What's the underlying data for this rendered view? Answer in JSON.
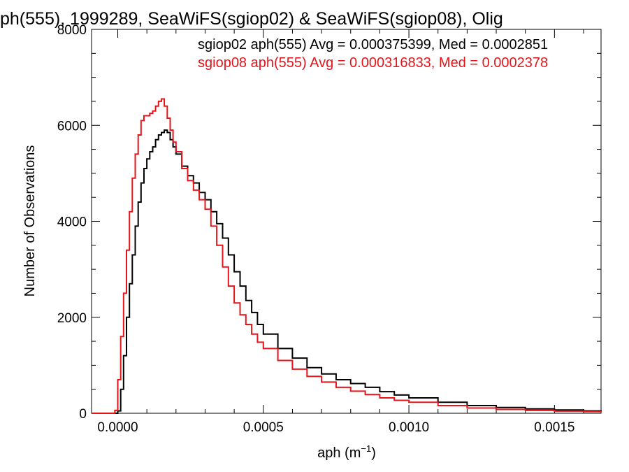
{
  "chart_data": {
    "type": "line",
    "title": "ph(555), 1999289, SeaWiFS(sgiop02) & SeaWiFS(sgiop08), Olig",
    "xlabel": "aph (m",
    "xlabel_sup": "−1",
    "xlabel_close": ")",
    "ylabel": "Number of Observations",
    "xlim": [
      -9e-05,
      0.00166
    ],
    "ylim": [
      0,
      8000
    ],
    "grid": false,
    "x_ticks": [
      0.0,
      0.0005,
      0.001,
      0.0015
    ],
    "x_tick_labels": [
      "0.0000",
      "0.0005",
      "0.0010",
      "0.0015"
    ],
    "y_ticks": [
      0,
      2000,
      4000,
      6000,
      8000
    ],
    "y_tick_labels": [
      "0",
      "2000",
      "4000",
      "6000",
      "8000"
    ],
    "legend_placement": "top-right",
    "series": [
      {
        "name": "sgiop02 aph(555) Avg = 0.000375399, Med = 0.0002851",
        "color": "#000000",
        "points": [
          [
            -9e-05,
            0
          ],
          [
            -1e-05,
            0
          ],
          [
            0.0,
            50
          ],
          [
            1e-05,
            500
          ],
          [
            2e-05,
            1200
          ],
          [
            3e-05,
            2000
          ],
          [
            4e-05,
            2700
          ],
          [
            5e-05,
            3300
          ],
          [
            6e-05,
            3900
          ],
          [
            7e-05,
            4400
          ],
          [
            8e-05,
            4800
          ],
          [
            9e-05,
            5100
          ],
          [
            0.0001,
            5300
          ],
          [
            0.00011,
            5450
          ],
          [
            0.00012,
            5550
          ],
          [
            0.00013,
            5700
          ],
          [
            0.00014,
            5800
          ],
          [
            0.00015,
            5850
          ],
          [
            0.00016,
            5900
          ],
          [
            0.00017,
            5850
          ],
          [
            0.00018,
            5700
          ],
          [
            0.00019,
            5550
          ],
          [
            0.0002,
            5400
          ],
          [
            0.00022,
            5150
          ],
          [
            0.00024,
            4950
          ],
          [
            0.00026,
            4800
          ],
          [
            0.00028,
            4600
          ],
          [
            0.0003,
            4450
          ],
          [
            0.00032,
            4200
          ],
          [
            0.00034,
            3950
          ],
          [
            0.00036,
            3650
          ],
          [
            0.00038,
            3300
          ],
          [
            0.0004,
            2950
          ],
          [
            0.00042,
            2650
          ],
          [
            0.00044,
            2350
          ],
          [
            0.00046,
            2100
          ],
          [
            0.00048,
            1850
          ],
          [
            0.0005,
            1650
          ],
          [
            0.00055,
            1350
          ],
          [
            0.0006,
            1150
          ],
          [
            0.00065,
            950
          ],
          [
            0.0007,
            820
          ],
          [
            0.00075,
            700
          ],
          [
            0.0008,
            620
          ],
          [
            0.00085,
            540
          ],
          [
            0.0009,
            450
          ],
          [
            0.00095,
            380
          ],
          [
            0.001,
            320
          ],
          [
            0.0011,
            230
          ],
          [
            0.0012,
            160
          ],
          [
            0.0013,
            120
          ],
          [
            0.0014,
            90
          ],
          [
            0.0015,
            70
          ],
          [
            0.0016,
            50
          ],
          [
            0.00166,
            45
          ]
        ]
      },
      {
        "name": "sgiop08 aph(555) Avg = 0.000316833, Med = 0.0002378",
        "color": "#e6151a",
        "points": [
          [
            -9e-05,
            0
          ],
          [
            -2e-05,
            0
          ],
          [
            -1e-05,
            60
          ],
          [
            0.0,
            700
          ],
          [
            1e-05,
            1600
          ],
          [
            2e-05,
            2500
          ],
          [
            3e-05,
            3400
          ],
          [
            4e-05,
            4200
          ],
          [
            5e-05,
            4900
          ],
          [
            6e-05,
            5400
          ],
          [
            7e-05,
            5800
          ],
          [
            8e-05,
            6100
          ],
          [
            9e-05,
            6200
          ],
          [
            0.0001,
            6200
          ],
          [
            0.00011,
            6250
          ],
          [
            0.00012,
            6300
          ],
          [
            0.00013,
            6400
          ],
          [
            0.00014,
            6500
          ],
          [
            0.00015,
            6550
          ],
          [
            0.00016,
            6400
          ],
          [
            0.00017,
            6150
          ],
          [
            0.00018,
            5900
          ],
          [
            0.00019,
            5650
          ],
          [
            0.0002,
            5450
          ],
          [
            0.00022,
            5100
          ],
          [
            0.00024,
            4850
          ],
          [
            0.00026,
            4650
          ],
          [
            0.00028,
            4450
          ],
          [
            0.0003,
            4250
          ],
          [
            0.00032,
            3900
          ],
          [
            0.00034,
            3500
          ],
          [
            0.00036,
            3050
          ],
          [
            0.00038,
            2650
          ],
          [
            0.0004,
            2300
          ],
          [
            0.00042,
            2050
          ],
          [
            0.00044,
            1850
          ],
          [
            0.00046,
            1650
          ],
          [
            0.00048,
            1480
          ],
          [
            0.0005,
            1350
          ],
          [
            0.00055,
            1100
          ],
          [
            0.0006,
            920
          ],
          [
            0.00065,
            770
          ],
          [
            0.0007,
            650
          ],
          [
            0.00075,
            540
          ],
          [
            0.0008,
            460
          ],
          [
            0.00085,
            390
          ],
          [
            0.0009,
            320
          ],
          [
            0.00095,
            270
          ],
          [
            0.001,
            230
          ],
          [
            0.0011,
            160
          ],
          [
            0.0012,
            110
          ],
          [
            0.0013,
            80
          ],
          [
            0.0014,
            60
          ],
          [
            0.0015,
            45
          ],
          [
            0.0016,
            35
          ],
          [
            0.00166,
            30
          ]
        ]
      }
    ]
  }
}
